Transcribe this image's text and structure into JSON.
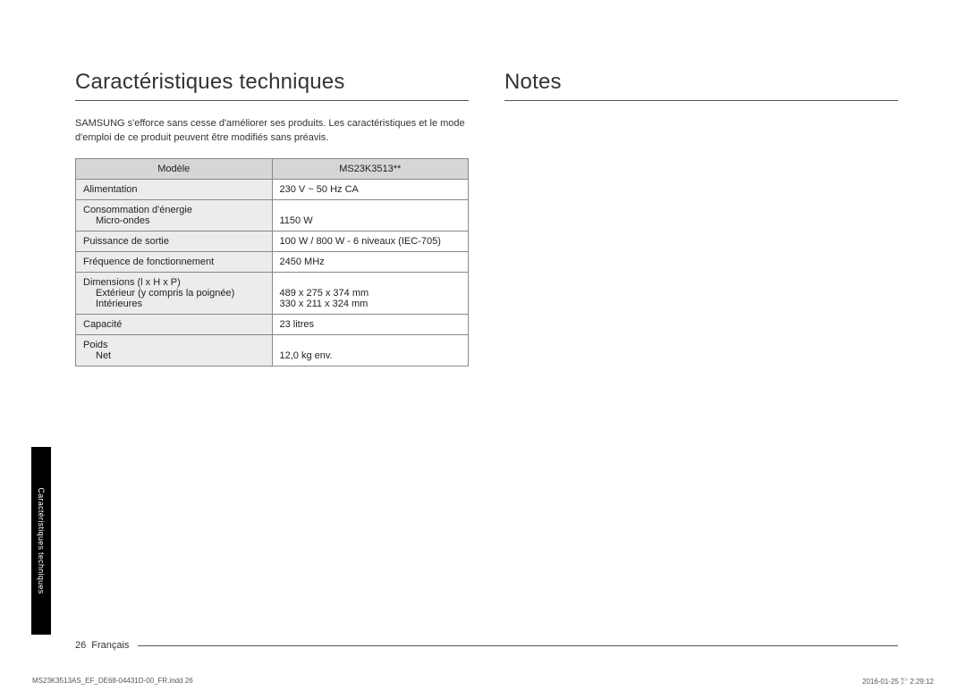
{
  "left": {
    "heading": "Caractéristiques techniques",
    "intro": "SAMSUNG s'efforce sans cesse d'améliorer ses produits. Les caractéristiques et le mode d'emploi de ce produit peuvent être modifiés sans préavis.",
    "table": {
      "header": {
        "col1": "Modèle",
        "col2": "MS23K3513**"
      },
      "rows": [
        {
          "label": "Alimentation",
          "value": "230 V ~ 50 Hz CA"
        },
        {
          "label": "Consommation d'énergie",
          "sub1_label": "Micro-ondes",
          "value_blank": "",
          "sub1_value": "1150 W"
        },
        {
          "label": "Puissance de sortie",
          "value": "100 W / 800 W - 6 niveaux (IEC-705)"
        },
        {
          "label": "Fréquence de fonctionnement",
          "value": "2450 MHz"
        },
        {
          "label": "Dimensions (l x H x P)",
          "sub1_label": "Extérieur (y compris la poignée)",
          "sub2_label": "Intérieures",
          "sub1_value": "489 x 275 x 374 mm",
          "sub2_value": "330 x 211 x 324 mm"
        },
        {
          "label": "Capacité",
          "value": "23 litres"
        },
        {
          "label": "Poids",
          "sub1_label": "Net",
          "value_blank": "",
          "sub1_value": "12,0 kg env."
        }
      ]
    }
  },
  "right": {
    "heading": "Notes"
  },
  "side_tab": "Caractéristiques techniques",
  "footer": {
    "page": "26",
    "lang": "Français"
  },
  "meta": {
    "left": "MS23K3513AS_EF_DE68-04431D-00_FR.indd   26",
    "right": "2016-01-25   ㌣ 2:29:12"
  }
}
